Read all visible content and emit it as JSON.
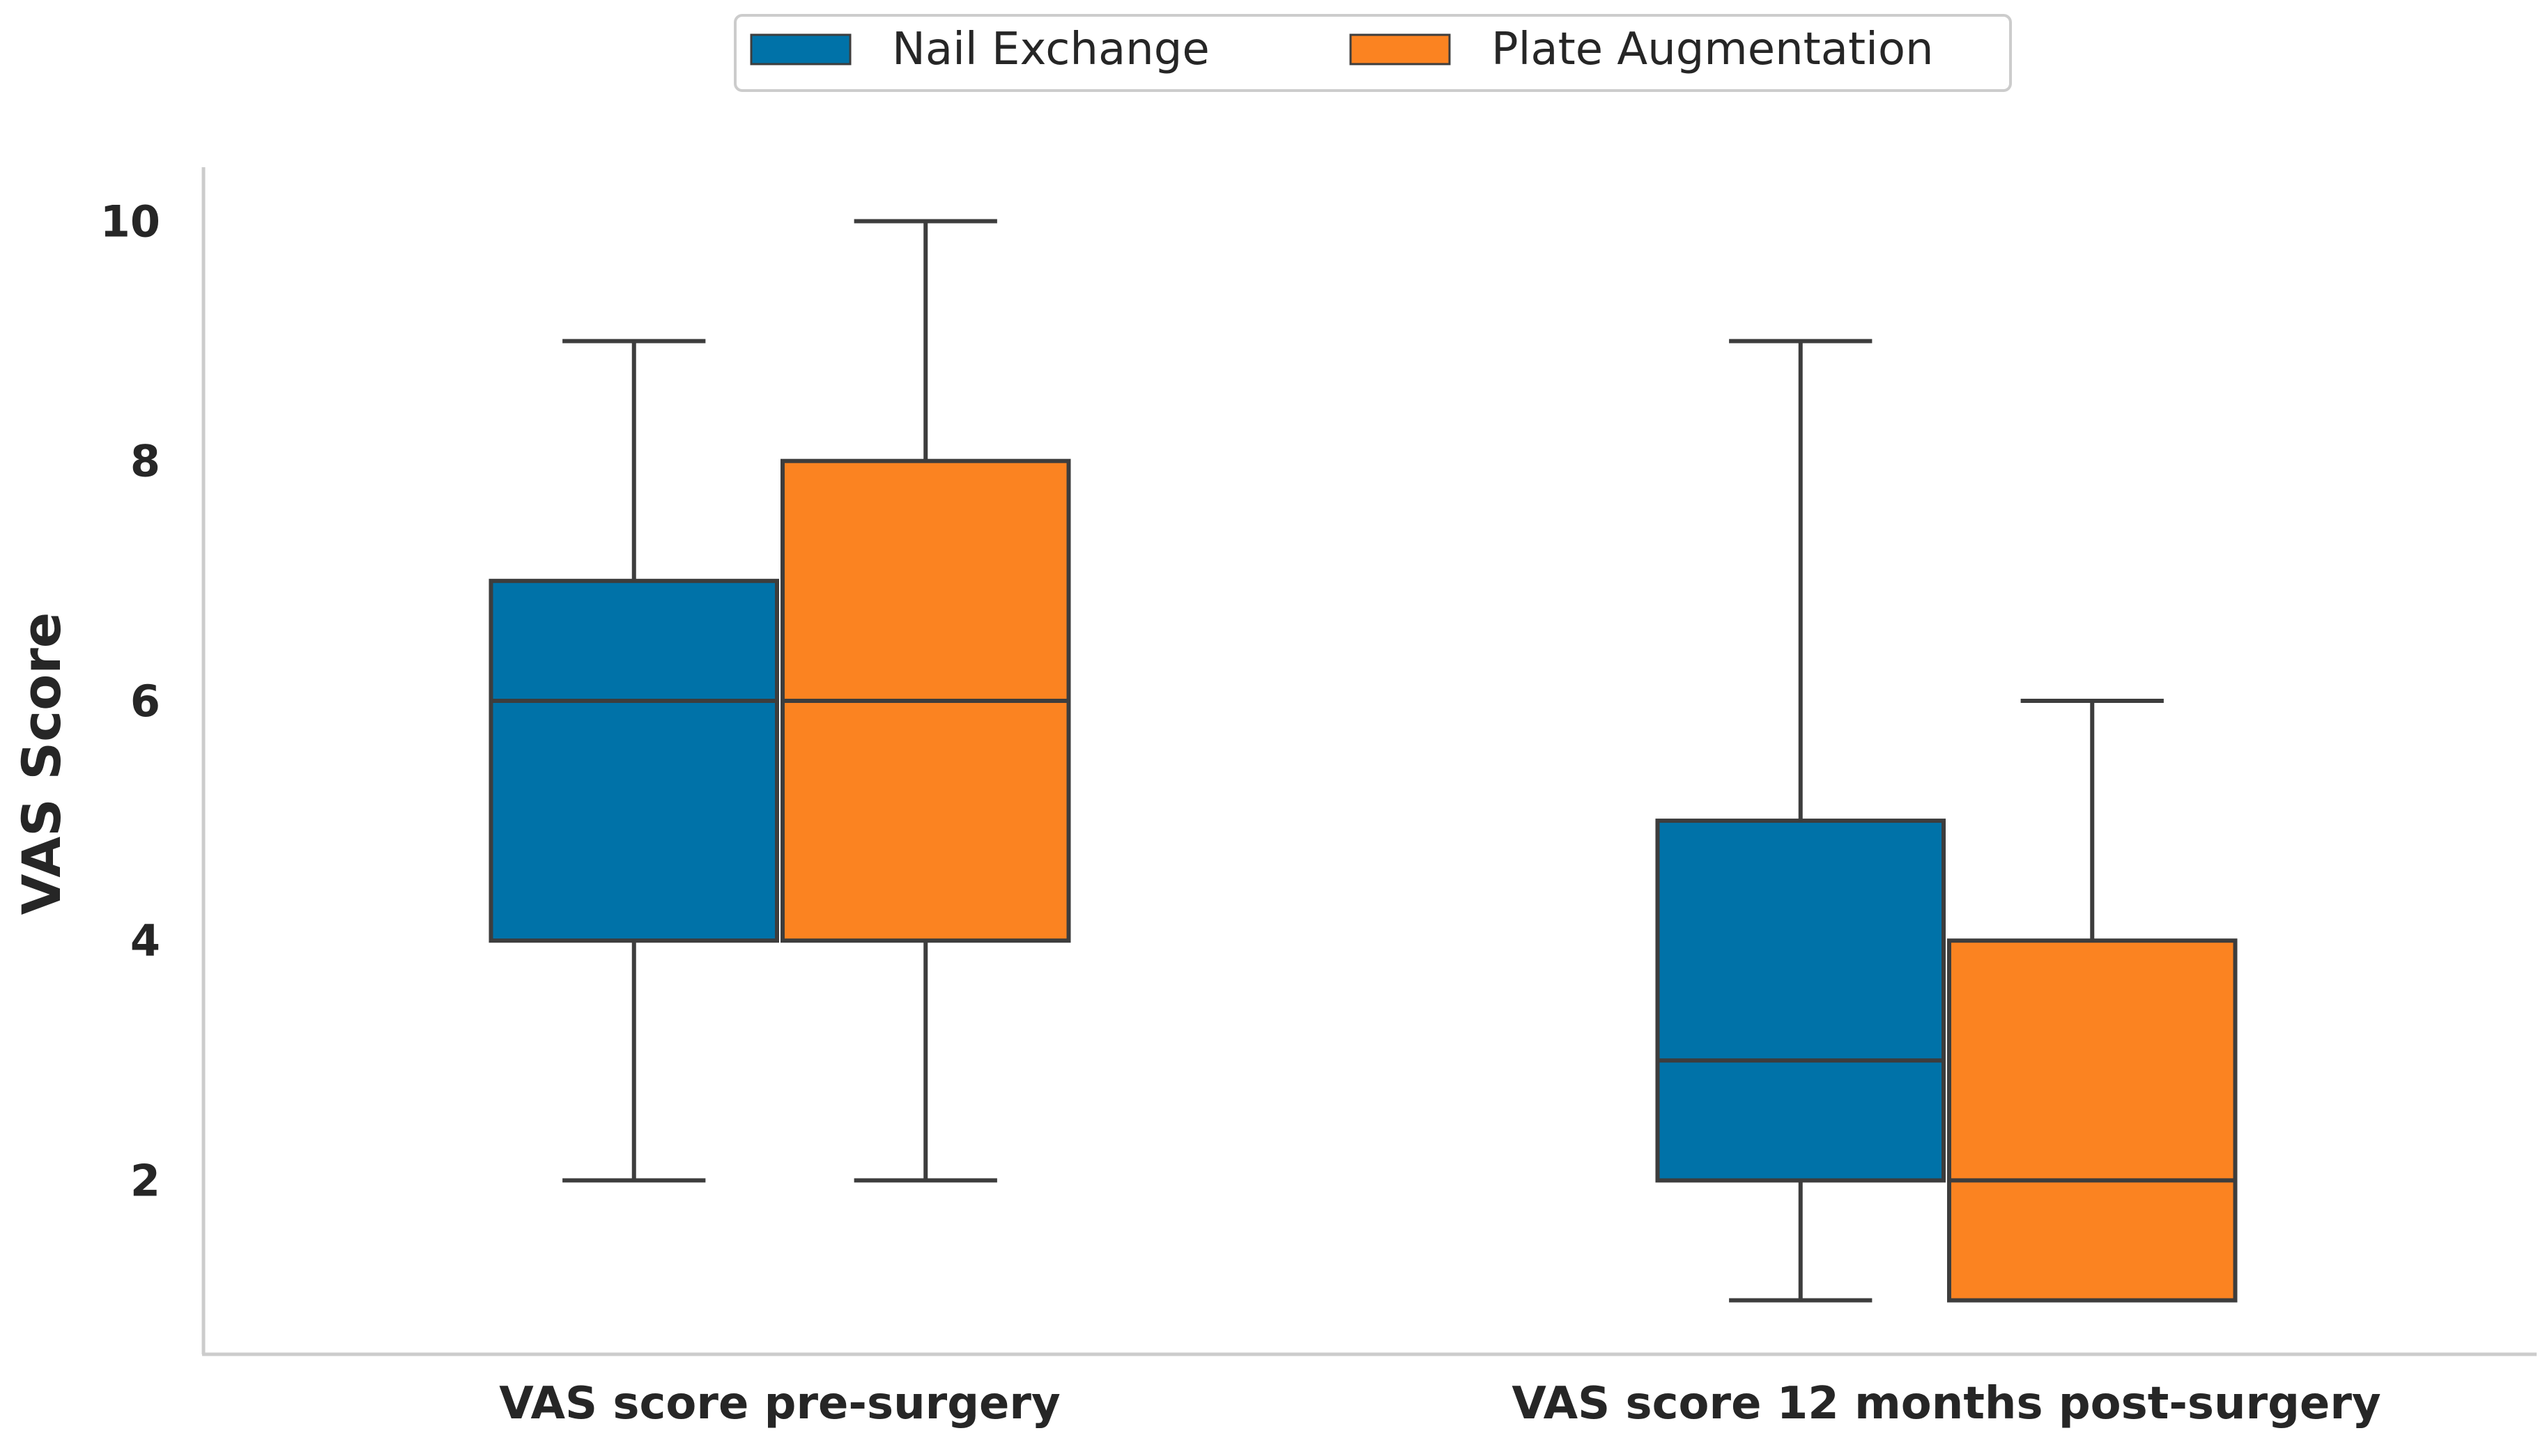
{
  "chart_data": {
    "type": "boxplot",
    "title": "",
    "xlabel": "",
    "ylabel": "VAS Score",
    "ylim": [
      0.55,
      10.45
    ],
    "yticks": [
      "2",
      "4",
      "6",
      "8",
      "10"
    ],
    "grid": false,
    "legend_position": "top-center",
    "categories": [
      "VAS score pre-surgery",
      "VAS score 12 months post-surgery"
    ],
    "series": [
      {
        "name": "Nail Exchange",
        "color": "#0072a8",
        "boxes": [
          {
            "whisker_low": 2,
            "q1": 4,
            "median": 6,
            "q3": 7,
            "whisker_high": 9
          },
          {
            "whisker_low": 1,
            "q1": 2,
            "median": 3,
            "q3": 5,
            "whisker_high": 9
          }
        ]
      },
      {
        "name": "Plate Augmentation",
        "color": "#fb8321",
        "boxes": [
          {
            "whisker_low": 2,
            "q1": 4,
            "median": 6,
            "q3": 8,
            "whisker_high": 10
          },
          {
            "whisker_low": 1,
            "q1": 1,
            "median": 2,
            "q3": 4,
            "whisker_high": 6
          }
        ]
      }
    ]
  }
}
